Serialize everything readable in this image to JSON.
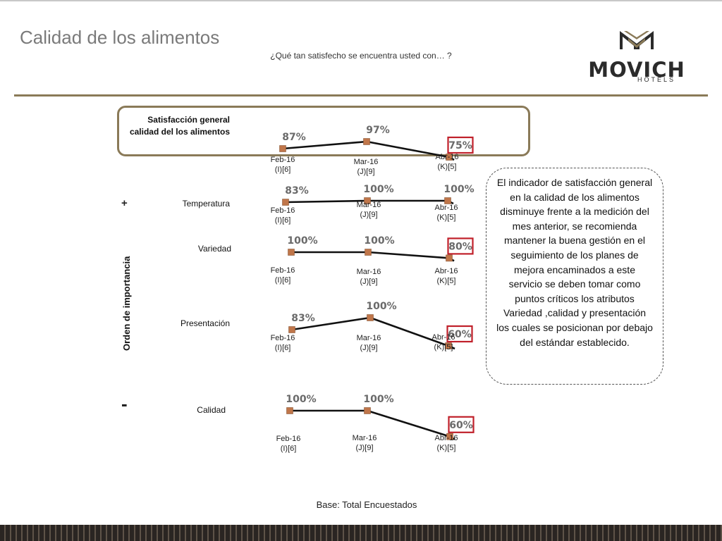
{
  "page": {
    "title": "Calidad de los alimentos",
    "subtitle": "¿Qué tan satisfecho se encuentra usted con… ?",
    "base": "Base: Total Encuestados",
    "axis_label": "Orden de importancia",
    "plus": "+",
    "minus": "-",
    "note": "El indicador de satisfacción general en la calidad de los alimentos disminuye frente a la medición del mes anterior, se recomienda mantener la buena gestión en el seguimiento de los planes de mejora encaminados a este servicio se deben tomar como puntos críticos los atributos Variedad ,calidad y presentación los cuales se posicionan por debajo del estándar establecido."
  },
  "logo": {
    "word": "MOVICH",
    "sub": "HOTELS",
    "color": "#2b2b2b",
    "accent": "#8a7a58"
  },
  "colors": {
    "line": "#111111",
    "marker": "#c0764a",
    "highlight": "#c0202a",
    "frame": "#8a7a58"
  },
  "chart_data": [
    {
      "type": "line",
      "name": "Satisfacción general calidad del los alimentos",
      "label_lines": [
        "Satisfacción general",
        "calidad del los alimentos"
      ],
      "x": [
        "Feb-16",
        "Mar-16",
        "Abr-16"
      ],
      "x_sub": [
        "(I)[6]",
        "(J)[9]",
        "(K)[5]"
      ],
      "values": [
        87,
        97,
        75
      ],
      "labels": [
        "87%",
        "97%",
        "75%"
      ],
      "highlighted": [
        false,
        false,
        true
      ]
    },
    {
      "type": "line",
      "name": "Temperatura",
      "label_lines": [
        "Temperatura"
      ],
      "x": [
        "Feb-16",
        "Mar-16",
        "Abr-16"
      ],
      "x_sub": [
        "(I)[6]",
        "(J)[9]",
        "(K)[5]"
      ],
      "values": [
        83,
        100,
        100
      ],
      "labels": [
        "83%",
        "100%",
        "100%"
      ],
      "highlighted": [
        false,
        false,
        false
      ]
    },
    {
      "type": "line",
      "name": "Variedad",
      "label_lines": [
        "Variedad"
      ],
      "x": [
        "Feb-16",
        "Mar-16",
        "Abr-16"
      ],
      "x_sub": [
        "(I)[6]",
        "(J)[9]",
        "(K)[5]"
      ],
      "values": [
        100,
        100,
        80
      ],
      "labels": [
        "100%",
        "100%",
        "80%"
      ],
      "highlighted": [
        false,
        false,
        true
      ]
    },
    {
      "type": "line",
      "name": "Presentación",
      "label_lines": [
        "Presentación"
      ],
      "x": [
        "Feb-16",
        "Mar-16",
        "Abr-16"
      ],
      "x_sub": [
        "(I)[6]",
        "(J)[9]",
        "(K)[5]"
      ],
      "values": [
        83,
        100,
        60
      ],
      "labels": [
        "83%",
        "100%",
        "60%"
      ],
      "highlighted": [
        false,
        false,
        true
      ]
    },
    {
      "type": "line",
      "name": "Calidad",
      "label_lines": [
        "Calidad"
      ],
      "x": [
        "Feb-16",
        "Mar-16",
        "Abr-16"
      ],
      "x_sub": [
        "(I)[6]",
        "(J)[9]",
        "(K)[5]"
      ],
      "values": [
        100,
        100,
        60
      ],
      "labels": [
        "100%",
        "100%",
        "60%"
      ],
      "highlighted": [
        false,
        false,
        true
      ]
    }
  ]
}
